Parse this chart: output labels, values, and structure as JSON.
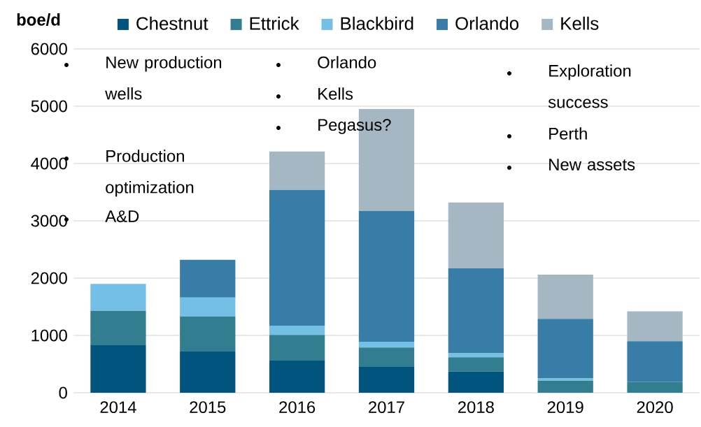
{
  "chart_data": {
    "type": "bar",
    "stacked": true,
    "ylabel": "boe/d",
    "categories": [
      "2014",
      "2015",
      "2016",
      "2017",
      "2018",
      "2019",
      "2020"
    ],
    "series": [
      {
        "name": "Chestnut",
        "color": "#00547e",
        "values": [
          830,
          720,
          560,
          450,
          370,
          0,
          0
        ]
      },
      {
        "name": "Ettrick",
        "color": "#327d8f",
        "values": [
          600,
          610,
          450,
          340,
          250,
          210,
          190
        ]
      },
      {
        "name": "Blackbird",
        "color": "#74bfe6",
        "values": [
          470,
          330,
          160,
          100,
          70,
          40,
          0
        ]
      },
      {
        "name": "Orlando",
        "color": "#387ca8",
        "values": [
          0,
          660,
          2370,
          2280,
          1480,
          1040,
          710
        ]
      },
      {
        "name": "Kells",
        "color": "#a4b7c3",
        "values": [
          0,
          0,
          670,
          1780,
          1150,
          770,
          520
        ]
      }
    ],
    "ylim": [
      0,
      6000
    ],
    "yticks": [
      0,
      1000,
      2000,
      3000,
      4000,
      5000,
      6000
    ],
    "grid": "y",
    "legend": "top",
    "annotations": [
      "New production wells",
      "Production optimization",
      "A&D",
      "Orlando",
      "Kells",
      "Pegasus?",
      "Exploration success",
      "Perth",
      "New assets"
    ]
  }
}
